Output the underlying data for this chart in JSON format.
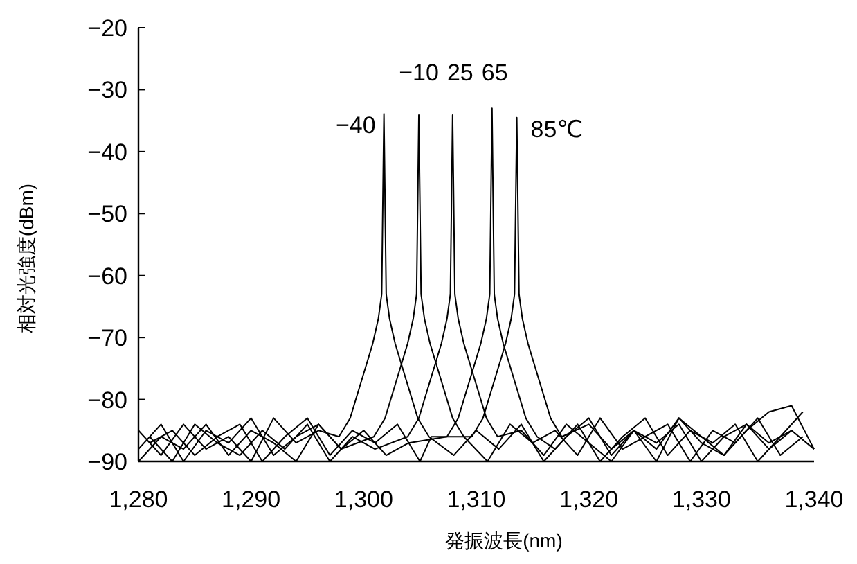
{
  "chart_data": {
    "type": "line",
    "xlabel": "発振波長(nm)",
    "ylabel": "相対光強度(dBm)",
    "xlim": [
      1280,
      1340
    ],
    "ylim": [
      -90,
      -20
    ],
    "xticks": [
      {
        "value": 1280,
        "label": "1,280"
      },
      {
        "value": 1290,
        "label": "1,290"
      },
      {
        "value": 1300,
        "label": "1,300"
      },
      {
        "value": 1310,
        "label": "1,310"
      },
      {
        "value": 1320,
        "label": "1,320"
      },
      {
        "value": 1330,
        "label": "1,330"
      },
      {
        "value": 1340,
        "label": "1,340"
      }
    ],
    "yticks": [
      -90,
      -80,
      -70,
      -60,
      -50,
      -40,
      -30,
      -20
    ],
    "grid": false,
    "series": [
      {
        "name": "−40",
        "color": "#000000",
        "x": [
          1280,
          1282,
          1284,
          1286,
          1288,
          1290,
          1292,
          1294,
          1296,
          1297.8,
          1298.8,
          1299.3,
          1299.8,
          1300.3,
          1300.8,
          1301.3,
          1301.6,
          1301.8,
          1302,
          1302.3,
          1302.8,
          1303.3,
          1303.8,
          1304.3,
          1304.8,
          1305.8,
          1308,
          1310,
          1312,
          1314,
          1316,
          1318,
          1320,
          1322,
          1324,
          1326,
          1328,
          1330,
          1332,
          1334,
          1336,
          1338
        ],
        "values": [
          -85,
          -89,
          -84,
          -88,
          -86,
          -90,
          -83,
          -87,
          -85,
          -86,
          -83,
          -80,
          -77,
          -74,
          -71,
          -67,
          -63,
          -33.9,
          -63,
          -67,
          -71,
          -74,
          -77,
          -80,
          -83,
          -86,
          -89,
          -85,
          -88,
          -84,
          -90,
          -86,
          -83,
          -89,
          -85,
          -87,
          -84,
          -90,
          -86,
          -84,
          -88,
          -85
        ]
      },
      {
        "name": "−10",
        "color": "#000000",
        "x": [
          1280,
          1282,
          1284,
          1286,
          1288,
          1290,
          1292,
          1294,
          1296,
          1298,
          1300.9,
          1301.9,
          1302.4,
          1302.9,
          1303.4,
          1303.9,
          1304.4,
          1304.7,
          1304.9,
          1305.1,
          1305.4,
          1305.9,
          1306.4,
          1306.9,
          1307.4,
          1307.9,
          1308.9,
          1311,
          1313,
          1315,
          1317,
          1319,
          1321,
          1323,
          1325,
          1327,
          1329,
          1331,
          1333,
          1335,
          1337,
          1339
        ],
        "values": [
          -88,
          -84,
          -90,
          -85,
          -87,
          -83,
          -89,
          -86,
          -84,
          -88,
          -86,
          -83,
          -80,
          -77,
          -74,
          -71,
          -67,
          -63,
          -34.1,
          -63,
          -67,
          -71,
          -74,
          -77,
          -80,
          -83,
          -86,
          -90,
          -84,
          -87,
          -85,
          -89,
          -83,
          -88,
          -86,
          -84,
          -90,
          -85,
          -87,
          -83,
          -89,
          -86
        ]
      },
      {
        "name": "25",
        "color": "#000000",
        "x": [
          1281,
          1283,
          1285,
          1287,
          1289,
          1291,
          1293,
          1295,
          1297,
          1299,
          1301,
          1303.9,
          1304.9,
          1305.4,
          1305.9,
          1306.4,
          1306.9,
          1307.4,
          1307.7,
          1307.9,
          1308.1,
          1308.4,
          1308.9,
          1309.4,
          1309.9,
          1310.4,
          1310.9,
          1311.9,
          1314,
          1316,
          1318,
          1320,
          1322,
          1324,
          1326,
          1328,
          1330,
          1332,
          1334,
          1336,
          1338,
          1340
        ],
        "values": [
          -86,
          -90,
          -84,
          -87,
          -89,
          -85,
          -88,
          -84,
          -90,
          -86,
          -88,
          -86,
          -83,
          -80,
          -77,
          -74,
          -71,
          -67,
          -63,
          -34.1,
          -63,
          -67,
          -71,
          -74,
          -77,
          -80,
          -83,
          -86,
          -85,
          -89,
          -84,
          -87,
          -90,
          -85,
          -88,
          -83,
          -86,
          -89,
          -84,
          -87,
          -85,
          -88
        ]
      },
      {
        "name": "65",
        "color": "#000000",
        "x": [
          1280,
          1282,
          1284,
          1286,
          1288,
          1290,
          1292,
          1294,
          1296,
          1298,
          1300,
          1302,
          1304,
          1307.4,
          1308.4,
          1308.9,
          1309.4,
          1309.9,
          1310.4,
          1310.9,
          1311.2,
          1311.4,
          1311.6,
          1311.9,
          1312.4,
          1312.9,
          1313.4,
          1313.9,
          1314.4,
          1315.4,
          1317,
          1319,
          1321,
          1323,
          1325,
          1327,
          1329,
          1331,
          1333,
          1335,
          1337,
          1339
        ],
        "values": [
          -90,
          -86,
          -88,
          -84,
          -89,
          -85,
          -87,
          -90,
          -84,
          -88,
          -85,
          -89,
          -87,
          -86,
          -83,
          -80,
          -77,
          -74,
          -71,
          -67,
          -63,
          -33,
          -63,
          -67,
          -71,
          -74,
          -77,
          -80,
          -83,
          -86,
          -88,
          -84,
          -90,
          -86,
          -83,
          -89,
          -85,
          -87,
          -84,
          -90,
          -86,
          -82
        ]
      },
      {
        "name": "85℃",
        "color": "#000000",
        "x": [
          1281,
          1283,
          1285,
          1287,
          1289,
          1291,
          1293,
          1295,
          1297,
          1299,
          1301,
          1303,
          1305,
          1306,
          1309.6,
          1310.6,
          1311.1,
          1311.6,
          1312.1,
          1312.6,
          1313.1,
          1313.4,
          1313.6,
          1313.8,
          1314.1,
          1314.6,
          1315.1,
          1315.6,
          1316.1,
          1316.6,
          1317.6,
          1320,
          1322,
          1324,
          1326,
          1328,
          1330,
          1332,
          1334,
          1336,
          1338,
          1340
        ],
        "values": [
          -87,
          -85,
          -89,
          -86,
          -84,
          -90,
          -86,
          -83,
          -89,
          -85,
          -87,
          -84,
          -90,
          -86,
          -86,
          -83,
          -80,
          -77,
          -74,
          -71,
          -67,
          -63,
          -34.5,
          -63,
          -67,
          -71,
          -74,
          -77,
          -80,
          -83,
          -86,
          -84,
          -88,
          -85,
          -90,
          -83,
          -87,
          -89,
          -85,
          -82,
          -81,
          -88
        ]
      }
    ]
  }
}
